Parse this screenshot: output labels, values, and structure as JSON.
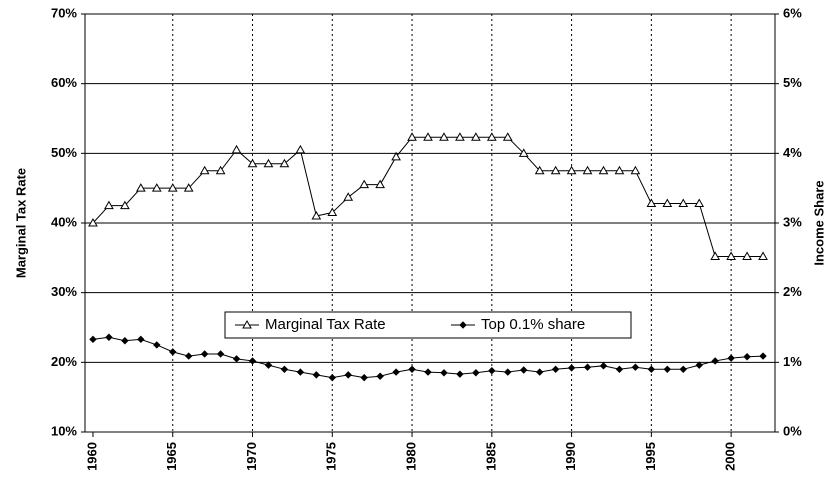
{
  "chart_data": {
    "type": "line",
    "ylabel": "Marginal Tax Rate",
    "y2label": "Income Share",
    "x": [
      1960,
      1961,
      1962,
      1963,
      1964,
      1965,
      1966,
      1967,
      1968,
      1969,
      1970,
      1971,
      1972,
      1973,
      1974,
      1975,
      1976,
      1977,
      1978,
      1979,
      1980,
      1981,
      1982,
      1983,
      1984,
      1985,
      1986,
      1987,
      1988,
      1989,
      1990,
      1991,
      1992,
      1993,
      1994,
      1995,
      1996,
      1997,
      1998,
      1999,
      2000,
      2001,
      2002
    ],
    "xlim": [
      1959.5,
      2002.75
    ],
    "xticks": [
      1960,
      1965,
      1970,
      1975,
      1980,
      1985,
      1990,
      1995,
      2000
    ],
    "ylim": [
      10,
      70
    ],
    "yticks": [
      {
        "value": 10,
        "label": "10%"
      },
      {
        "value": 20,
        "label": "20%"
      },
      {
        "value": 30,
        "label": "30%"
      },
      {
        "value": 40,
        "label": "40%"
      },
      {
        "value": 50,
        "label": "50%"
      },
      {
        "value": 60,
        "label": "60%"
      },
      {
        "value": 70,
        "label": "70%"
      }
    ],
    "y2lim": [
      0,
      6
    ],
    "y2ticks": [
      {
        "value": 0,
        "label": "0%"
      },
      {
        "value": 1,
        "label": "1%"
      },
      {
        "value": 2,
        "label": "2%"
      },
      {
        "value": 3,
        "label": "3%"
      },
      {
        "value": 4,
        "label": "4%"
      },
      {
        "value": 5,
        "label": "5%"
      },
      {
        "value": 6,
        "label": "6%"
      }
    ],
    "grid": true,
    "legend": "lower center",
    "series": [
      {
        "name": "Marginal Tax Rate",
        "color": "#000000",
        "marker": "triangle",
        "axis": "y",
        "values": [
          40,
          42.5,
          42.5,
          45,
          45,
          45,
          45,
          47.5,
          47.5,
          50.5,
          48.5,
          48.5,
          48.5,
          50.5,
          41,
          41.5,
          43.7,
          45.5,
          45.5,
          49.5,
          52.3,
          52.3,
          52.3,
          52.3,
          52.3,
          52.3,
          52.3,
          50,
          47.5,
          47.5,
          47.5,
          47.5,
          47.5,
          47.5,
          47.5,
          42.8,
          42.8,
          42.8,
          42.8,
          35.2,
          35.2,
          35.2,
          35.2
        ]
      },
      {
        "name": "Top 0.1% share",
        "color": "#000000",
        "marker": "diamond",
        "axis": "y2",
        "values": [
          1.33,
          1.36,
          1.31,
          1.33,
          1.25,
          1.15,
          1.09,
          1.12,
          1.12,
          1.05,
          1.02,
          0.96,
          0.9,
          0.86,
          0.82,
          0.78,
          0.82,
          0.78,
          0.8,
          0.86,
          0.9,
          0.86,
          0.85,
          0.83,
          0.85,
          0.88,
          0.86,
          0.89,
          0.86,
          0.9,
          0.92,
          0.93,
          0.95,
          0.9,
          0.93,
          0.9,
          0.9,
          0.9,
          0.96,
          1.02,
          1.06,
          1.08,
          1.09
        ]
      }
    ]
  }
}
